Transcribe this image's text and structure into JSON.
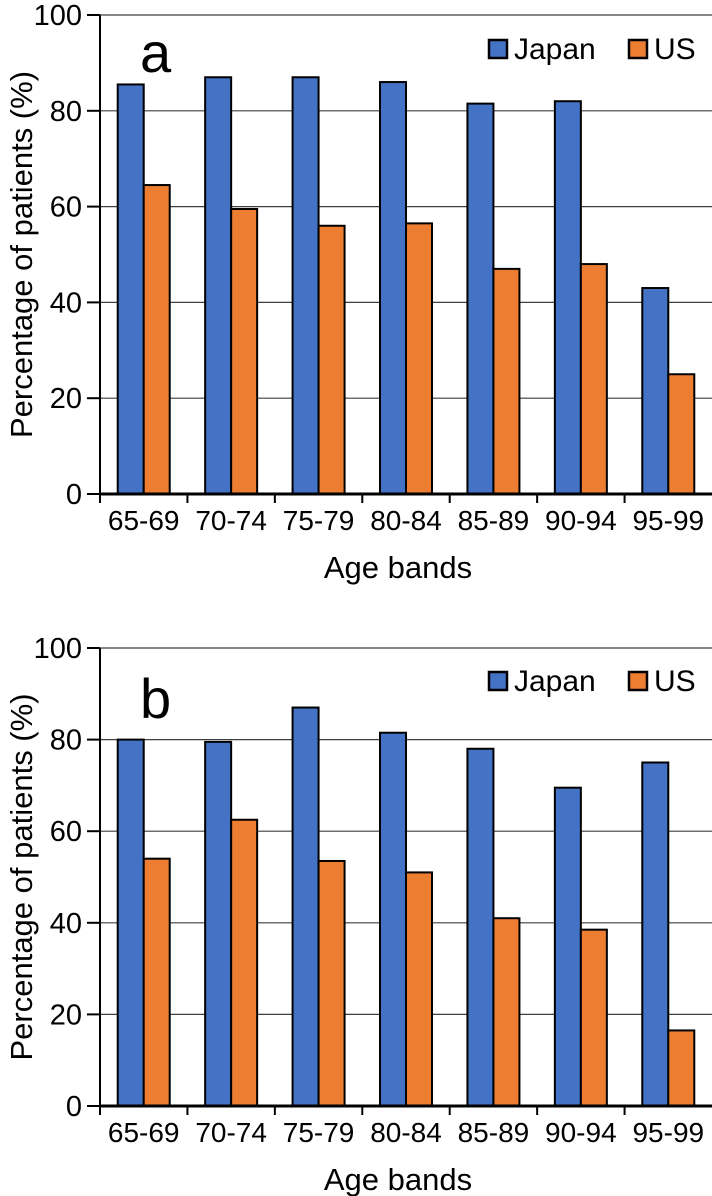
{
  "figure": {
    "background": "#ffffff",
    "axis_color": "#000000",
    "gridline_color": "#3f3f3f",
    "bar_border_color": "#000000"
  },
  "chart_data": [
    {
      "type": "bar",
      "panel_label": "a",
      "categories": [
        "65-69",
        "70-74",
        "75-79",
        "80-84",
        "85-89",
        "90-94",
        "95-99"
      ],
      "series": [
        {
          "name": "Japan",
          "color": "#4472C4",
          "values": [
            85.5,
            87,
            87,
            86,
            81.5,
            82,
            43
          ]
        },
        {
          "name": "US",
          "color": "#ED7D31",
          "values": [
            64.5,
            59.5,
            56,
            56.5,
            47,
            48,
            25
          ]
        }
      ],
      "xlabel": "Age bands",
      "ylabel": "Percentage of patients (%)",
      "ylim": [
        0,
        100
      ],
      "yticks": [
        0,
        20,
        40,
        60,
        80,
        100
      ],
      "grid": true,
      "legend_position": "top-right"
    },
    {
      "type": "bar",
      "panel_label": "b",
      "categories": [
        "65-69",
        "70-74",
        "75-79",
        "80-84",
        "85-89",
        "90-94",
        "95-99"
      ],
      "series": [
        {
          "name": "Japan",
          "color": "#4472C4",
          "values": [
            80,
            79.5,
            87,
            81.5,
            78,
            69.5,
            75
          ]
        },
        {
          "name": "US",
          "color": "#ED7D31",
          "values": [
            54,
            62.5,
            53.5,
            51,
            41,
            38.5,
            16.5
          ]
        }
      ],
      "xlabel": "Age bands",
      "ylabel": "Percentage of patients (%)",
      "ylim": [
        0,
        100
      ],
      "yticks": [
        0,
        20,
        40,
        60,
        80,
        100
      ],
      "grid": true,
      "legend_position": "top-right"
    }
  ]
}
